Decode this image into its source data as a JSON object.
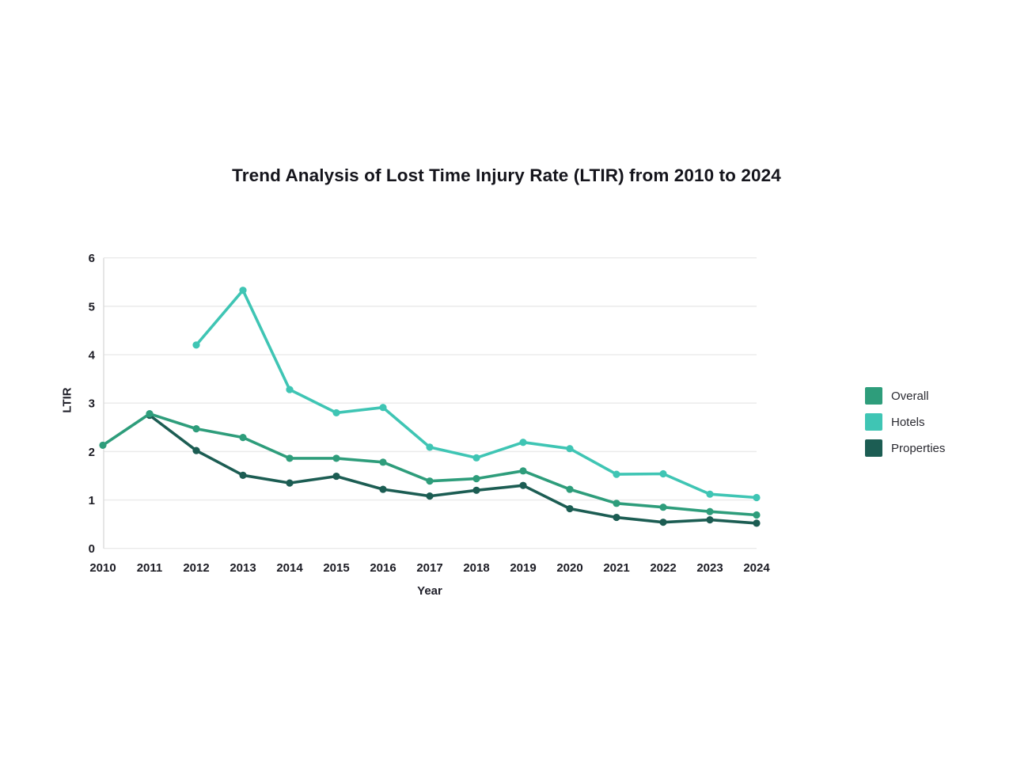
{
  "page": {
    "background": "#ffffff"
  },
  "chart_data": {
    "type": "line",
    "title": "Trend Analysis of Lost Time Injury Rate (LTIR) from 2010 to 2024",
    "xlabel": "Year",
    "ylabel": "LTIR",
    "x": [
      2010,
      2011,
      2012,
      2013,
      2014,
      2015,
      2016,
      2017,
      2018,
      2019,
      2020,
      2021,
      2022,
      2023,
      2024
    ],
    "ylim": [
      0,
      6
    ],
    "yticks": [
      0,
      1,
      2,
      3,
      4,
      5,
      6
    ],
    "grid": true,
    "legend_position": "right",
    "series": [
      {
        "name": "Overall",
        "color": "#2e9d7b",
        "values": [
          2.13,
          2.78,
          2.47,
          2.29,
          1.86,
          1.86,
          1.78,
          1.39,
          1.44,
          1.6,
          1.22,
          0.93,
          0.85,
          0.76,
          0.69
        ]
      },
      {
        "name": "Hotels",
        "color": "#3fc5b4",
        "values": [
          null,
          null,
          4.2,
          5.33,
          3.28,
          2.8,
          2.91,
          2.09,
          1.87,
          2.19,
          2.06,
          1.53,
          1.54,
          1.12,
          1.05
        ]
      },
      {
        "name": "Properties",
        "color": "#1c5d53",
        "values": [
          null,
          2.75,
          2.02,
          1.51,
          1.35,
          1.49,
          1.22,
          1.08,
          1.2,
          1.3,
          0.82,
          0.64,
          0.54,
          0.59,
          0.52
        ]
      }
    ]
  },
  "style": {
    "grid_color": "#eaeaea",
    "axis_color": "#dcdcdc",
    "tick_text_color": "#1c1c24",
    "title_color": "#15151c"
  }
}
